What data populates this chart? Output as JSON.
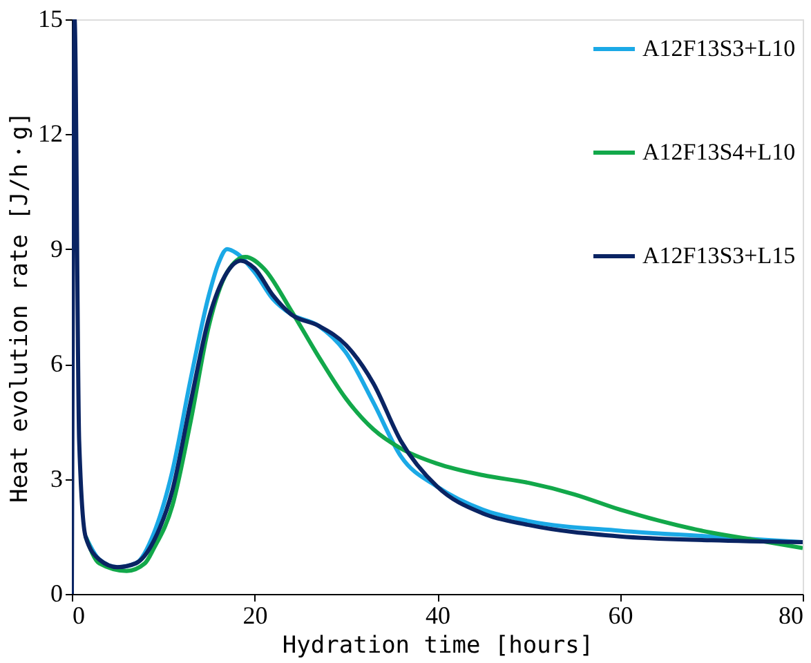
{
  "chart_data": {
    "type": "line",
    "xlabel": "Hydration time [hours]",
    "ylabel": "Heat evolution rate [J/h・g]",
    "xlim": [
      0,
      80
    ],
    "xticks": [
      0,
      20,
      40,
      60,
      80
    ],
    "ylim": [
      0,
      15
    ],
    "yticks": [
      0,
      3,
      6,
      9,
      12,
      15
    ],
    "grid": false,
    "legend": "top right",
    "marker": "none",
    "line_style": "solid",
    "series": [
      {
        "name": "A12F13S3+L10",
        "color": "#1ba9e6",
        "x": [
          1.5,
          3,
          5,
          7,
          9,
          11,
          13,
          15,
          16,
          17,
          18,
          20,
          22,
          24,
          27,
          30,
          33,
          36,
          40,
          45,
          50,
          60,
          70,
          80
        ],
        "values": [
          1.5,
          0.9,
          0.7,
          0.8,
          1.6,
          3.2,
          5.6,
          7.8,
          8.6,
          9.0,
          8.9,
          8.4,
          7.7,
          7.3,
          7.0,
          6.3,
          5.0,
          3.6,
          2.8,
          2.2,
          1.9,
          1.65,
          1.5,
          1.35
        ]
      },
      {
        "name": "A12F13S4+L10",
        "color": "#12a84a",
        "x": [
          1.5,
          3,
          6,
          8,
          9,
          11,
          13,
          15,
          17,
          19,
          21,
          24,
          27,
          30,
          33,
          36,
          40,
          45,
          50,
          55,
          60,
          70,
          75,
          80
        ],
        "values": [
          1.5,
          0.8,
          0.6,
          0.8,
          1.2,
          2.3,
          4.5,
          7.0,
          8.4,
          8.8,
          8.5,
          7.4,
          6.2,
          5.1,
          4.3,
          3.8,
          3.4,
          3.1,
          2.9,
          2.6,
          2.2,
          1.6,
          1.4,
          1.2
        ]
      },
      {
        "name": "A12F13S3+L15",
        "color": "#0a2463",
        "x": [
          0,
          0.3,
          0.8,
          1.5,
          3,
          5,
          7,
          9,
          11,
          13,
          15,
          17,
          18.5,
          20,
          22,
          24,
          27,
          30,
          33,
          36,
          40,
          45,
          50,
          60,
          70,
          80
        ],
        "values": [
          0,
          15,
          4,
          1.5,
          0.9,
          0.7,
          0.8,
          1.4,
          2.7,
          5.0,
          7.2,
          8.4,
          8.7,
          8.5,
          7.8,
          7.3,
          7.0,
          6.5,
          5.5,
          4.0,
          2.8,
          2.1,
          1.8,
          1.5,
          1.4,
          1.35
        ]
      }
    ]
  }
}
